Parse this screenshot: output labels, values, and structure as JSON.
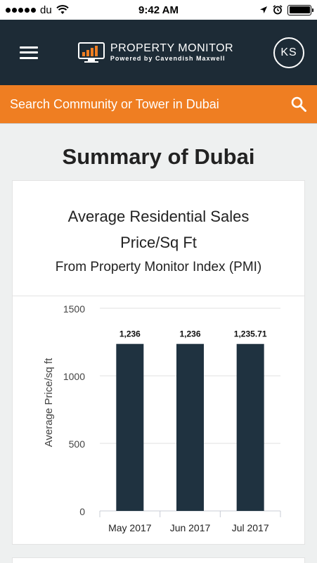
{
  "status_bar": {
    "carrier": "du",
    "time": "9:42 AM"
  },
  "header": {
    "logo_title": "PROPERTY MONITOR",
    "logo_subtitle": "Powered by Cavendish Maxwell",
    "avatar_initials": "KS"
  },
  "search": {
    "placeholder": "Search Community or Tower in Dubai"
  },
  "page": {
    "title": "Summary of Dubai"
  },
  "card": {
    "title": "Average Residential Sales Price/Sq Ft",
    "subtitle": "From Property Monitor Index (PMI)"
  },
  "colors": {
    "header_bg": "#1d2b36",
    "accent": "#ef7e22",
    "bar": "#1f3240"
  },
  "chart_data": {
    "type": "bar",
    "categories": [
      "May 2017",
      "Jun 2017",
      "Jul 2017"
    ],
    "values": [
      1236,
      1236,
      1235.71
    ],
    "data_labels": [
      "1,236",
      "1,236",
      "1,235.71"
    ],
    "ylabel": "Average Price/sq ft",
    "ylim": [
      0,
      1500
    ],
    "yticks": [
      0,
      500,
      1000,
      1500
    ],
    "grid": true
  }
}
